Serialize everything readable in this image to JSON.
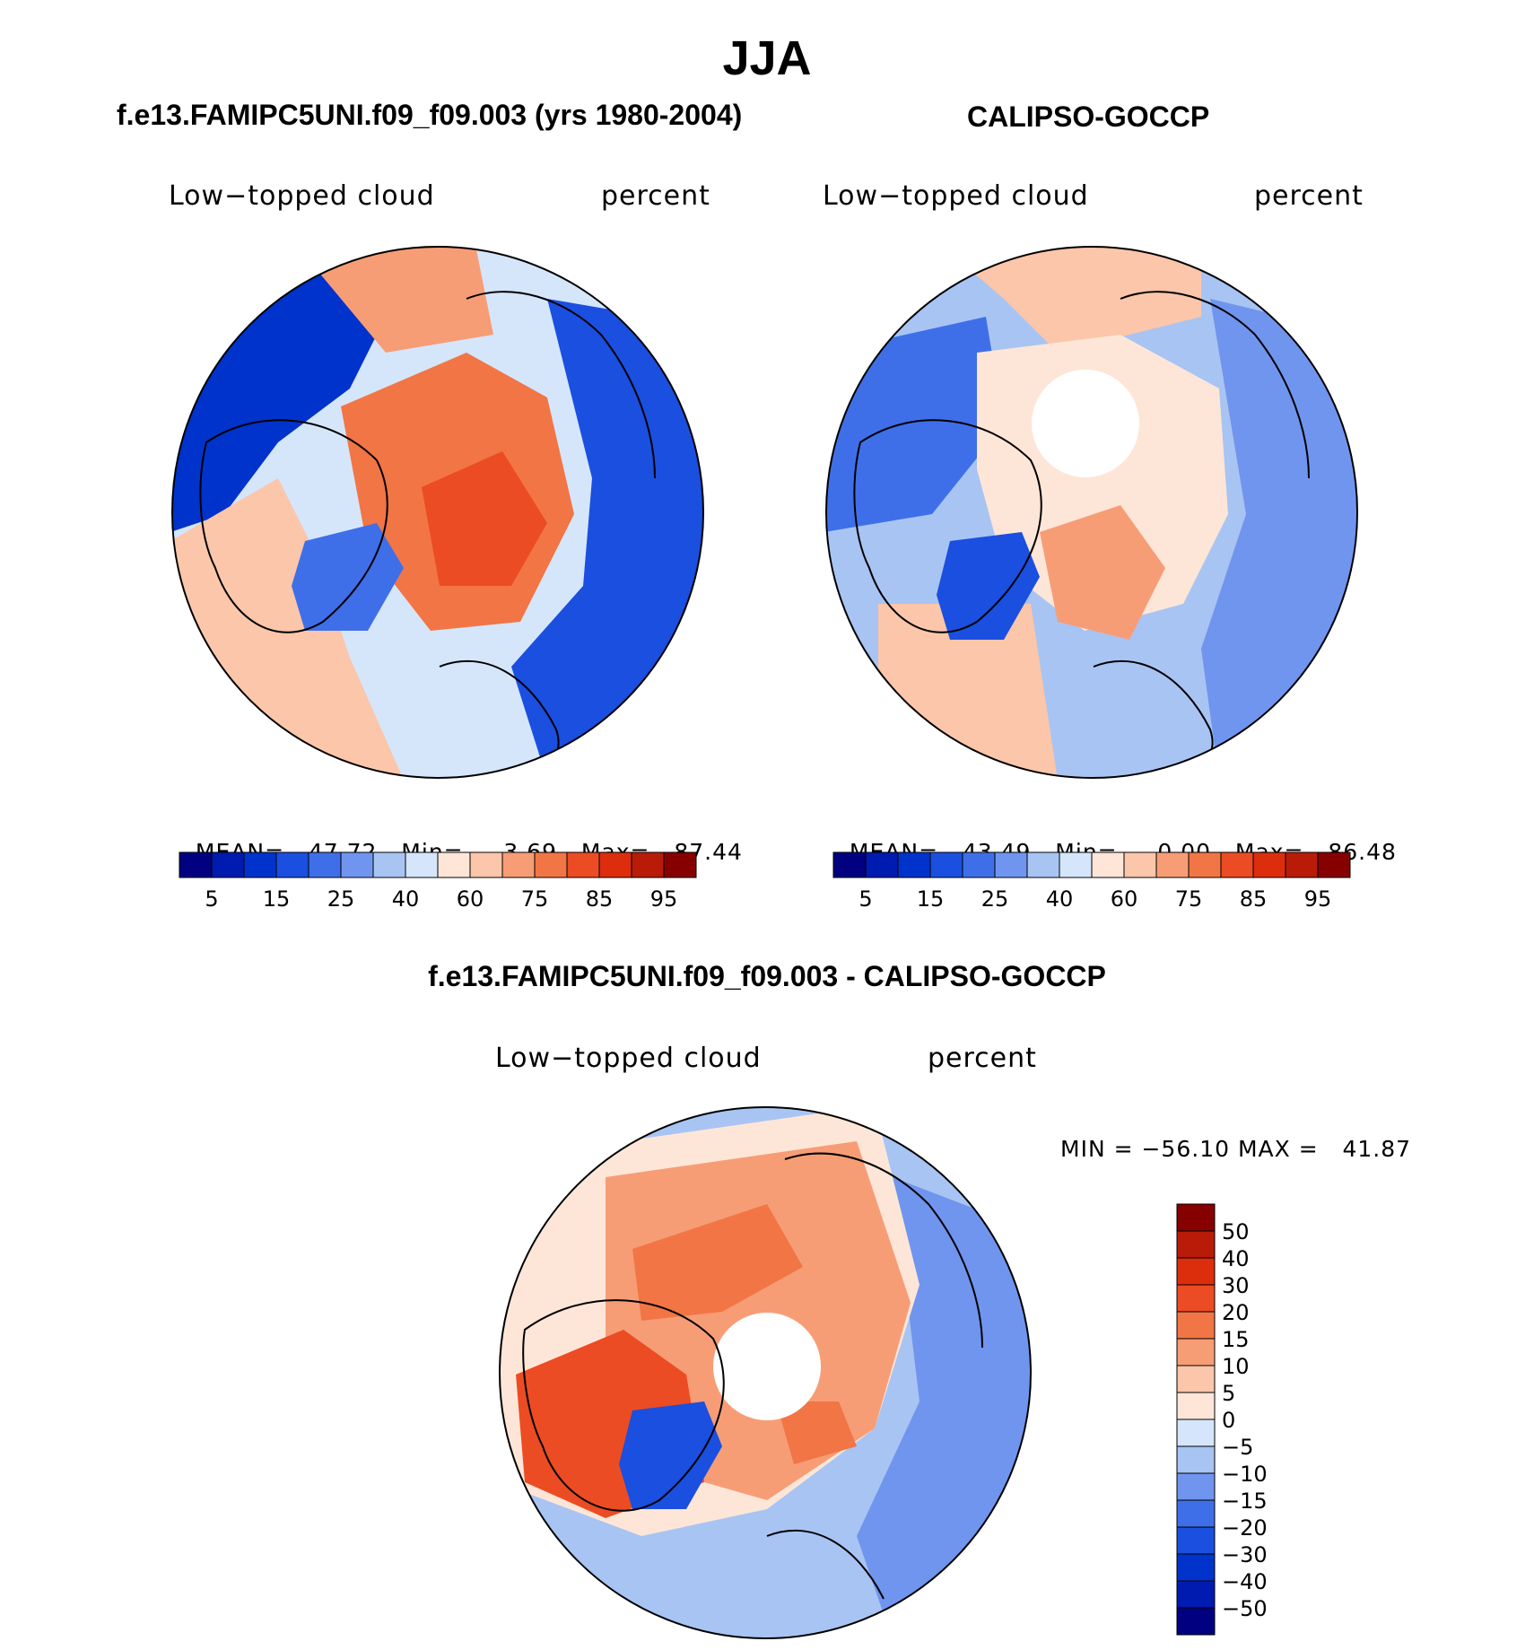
{
  "page_title": "JJA",
  "panels": {
    "model": {
      "heading": "f.e13.FAMIPC5UNI.f09_f09.003 (yrs 1980-2004)",
      "left_label": "Low−topped cloud",
      "right_label": "percent",
      "stats": {
        "mean_label": "MEAN=",
        "mean": "47.72",
        "min_label": "Min=",
        "min": "3.69",
        "max_label": "Max=",
        "max": "87.44"
      }
    },
    "obs": {
      "heading": "CALIPSO-GOCCP",
      "left_label": "Low−topped cloud",
      "right_label": "percent",
      "stats": {
        "mean_label": "MEAN=",
        "mean": "43.49",
        "min_label": "Min=",
        "min": "0.00",
        "max_label": "Max=",
        "max": "86.48"
      }
    },
    "diff": {
      "heading": "f.e13.FAMIPC5UNI.f09_f09.003 - CALIPSO-GOCCP",
      "left_label": "Low−topped cloud",
      "right_label": "percent",
      "minmax": "MIN = −56.10 MAX =   41.87"
    }
  },
  "colorbar_abs": {
    "colors": [
      "#000080",
      "#001bb0",
      "#0033cc",
      "#1a4fe0",
      "#3f6fe8",
      "#7095ee",
      "#a8c4f3",
      "#d5e6fb",
      "#fde6d8",
      "#fbc6aa",
      "#f79d76",
      "#f27545",
      "#ec4c23",
      "#dc2d0d",
      "#b81c08",
      "#870000"
    ],
    "tick_labels": [
      "5",
      "15",
      "25",
      "40",
      "60",
      "75",
      "85",
      "95"
    ]
  },
  "colorbar_diff": {
    "colors": [
      "#000080",
      "#001bb0",
      "#0033cc",
      "#1a4fe0",
      "#3f6fe8",
      "#7095ee",
      "#a8c4f3",
      "#d5e6fb",
      "#fde6d8",
      "#fbc6aa",
      "#f79d76",
      "#f27545",
      "#ec4c23",
      "#dc2d0d",
      "#b81c08",
      "#870000"
    ],
    "tick_labels": [
      "−50",
      "−40",
      "−30",
      "−20",
      "−15",
      "−10",
      "−5",
      "0",
      "5",
      "10",
      "15",
      "20",
      "30",
      "40",
      "50"
    ]
  },
  "maps": {
    "model": {
      "background_color": "#d5e6fb",
      "regions": [
        {
          "name": "atlantic-low",
          "color": "#1a4fe0"
        },
        {
          "name": "pacific-low",
          "color": "#0033cc"
        },
        {
          "name": "arctic-high",
          "color": "#f27545"
        },
        {
          "name": "arctic-core",
          "color": "#ec4c23"
        },
        {
          "name": "greenland",
          "color": "#3f6fe8"
        },
        {
          "name": "siberia-high",
          "color": "#f79d76"
        },
        {
          "name": "canada-high",
          "color": "#fbc6aa"
        }
      ]
    },
    "obs": {
      "background_color": "#a8c4f3",
      "regions": [
        {
          "name": "pacific-low",
          "color": "#3f6fe8"
        },
        {
          "name": "atlantic-low",
          "color": "#7095ee"
        },
        {
          "name": "arctic-ring",
          "color": "#fde6d8"
        },
        {
          "name": "siberia",
          "color": "#fbc6aa"
        },
        {
          "name": "north-atlantic",
          "color": "#f79d76"
        },
        {
          "name": "greenland",
          "color": "#1a4fe0"
        }
      ]
    },
    "diff": {
      "background_color": "#a8c4f3",
      "regions": [
        {
          "name": "arctic-ring",
          "color": "#f79d76"
        },
        {
          "name": "canada",
          "color": "#ec4c23"
        },
        {
          "name": "siberia",
          "color": "#f27545"
        },
        {
          "name": "greenland",
          "color": "#1a4fe0"
        },
        {
          "name": "pacific-neutral",
          "color": "#fde6d8"
        },
        {
          "name": "atlantic-neg",
          "color": "#7095ee"
        }
      ]
    }
  }
}
